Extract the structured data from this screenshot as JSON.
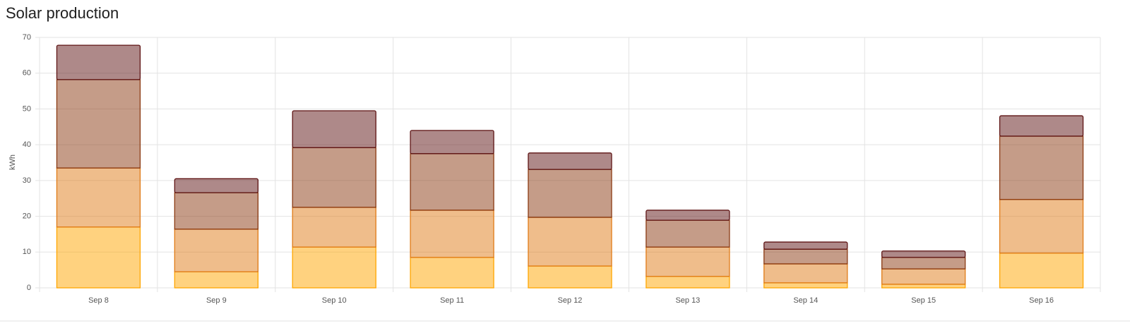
{
  "chart_data": {
    "type": "stacked_bar",
    "title": "Solar production",
    "y_label": "kWh",
    "categories": [
      "Sep 8",
      "Sep 9",
      "Sep 10",
      "Sep 11",
      "Sep 12",
      "Sep 13",
      "Sep 14",
      "Sep 15",
      "Sep 16"
    ],
    "series": [
      {
        "color": "#ffa600",
        "values": [
          17,
          4.5,
          11.4,
          8.5,
          6.1,
          3.2,
          1.4,
          1.0,
          9.7
        ]
      },
      {
        "color": "#e07b17",
        "values": [
          16.5,
          11.9,
          11.1,
          13.2,
          13.6,
          8.2,
          5.3,
          4.3,
          15.0
        ]
      },
      {
        "color": "#8b3a12",
        "values": [
          24.7,
          10.2,
          16.7,
          15.8,
          13.4,
          7.5,
          4.1,
          3.2,
          17.7
        ]
      },
      {
        "color": "#5e1414",
        "values": [
          9.6,
          3.9,
          10.3,
          6.5,
          4.6,
          2.8,
          2.0,
          1.8,
          5.7
        ]
      }
    ],
    "ylim": [
      0,
      70
    ],
    "yticks": [
      0,
      10,
      20,
      30,
      40,
      50,
      60,
      70
    ],
    "grid": true
  }
}
